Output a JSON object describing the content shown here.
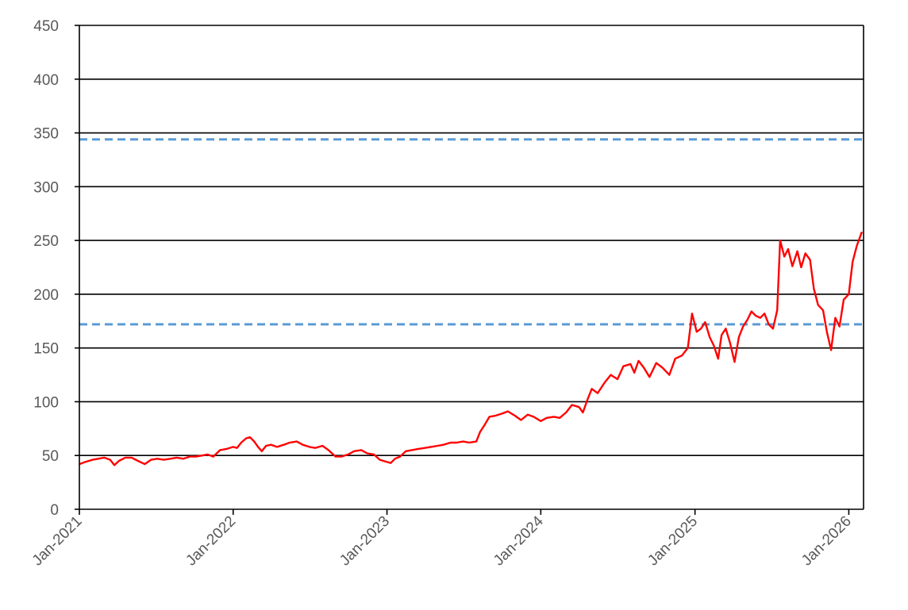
{
  "chart_data": {
    "type": "line",
    "title": "",
    "xlabel": "",
    "ylabel": "",
    "x_range": [
      "2021-01-01",
      "2026-02-05"
    ],
    "ylim": [
      0,
      450
    ],
    "y_ticks": [
      0,
      50,
      100,
      150,
      200,
      250,
      300,
      350,
      400,
      450
    ],
    "y_tick_labels": [
      "0",
      "50",
      "100",
      "150",
      "200",
      "250",
      "300",
      "350",
      "400",
      "450"
    ],
    "x_ticks": [
      "2021-01-01",
      "2022-01-01",
      "2023-01-01",
      "2024-01-01",
      "2025-01-01",
      "2026-01-01"
    ],
    "x_tick_labels": [
      "Jan-2021",
      "Jan-2022",
      "Jan-2023",
      "Jan-2024",
      "Jan-2025",
      "Jan-2026"
    ],
    "grid": "horizontal",
    "legend": "none",
    "reference_lines": [
      {
        "y": 344,
        "style": "dashed",
        "color": "#5B9BD5"
      },
      {
        "y": 172,
        "style": "dashed",
        "color": "#5B9BD5"
      }
    ],
    "series": [
      {
        "color": "#FF0000",
        "points": [
          [
            "2021-01-01",
            42
          ],
          [
            "2021-01-15",
            44
          ],
          [
            "2021-02-01",
            46
          ],
          [
            "2021-02-15",
            47
          ],
          [
            "2021-03-01",
            48
          ],
          [
            "2021-03-15",
            46
          ],
          [
            "2021-03-25",
            41
          ],
          [
            "2021-04-05",
            45
          ],
          [
            "2021-04-20",
            48
          ],
          [
            "2021-05-05",
            48
          ],
          [
            "2021-05-20",
            45
          ],
          [
            "2021-06-05",
            42
          ],
          [
            "2021-06-20",
            46
          ],
          [
            "2021-07-05",
            47
          ],
          [
            "2021-07-20",
            46
          ],
          [
            "2021-08-05",
            47
          ],
          [
            "2021-08-20",
            48
          ],
          [
            "2021-09-05",
            47
          ],
          [
            "2021-09-20",
            49
          ],
          [
            "2021-10-05",
            49
          ],
          [
            "2021-10-20",
            50
          ],
          [
            "2021-11-01",
            51
          ],
          [
            "2021-11-15",
            49
          ],
          [
            "2021-12-01",
            55
          ],
          [
            "2021-12-15",
            56
          ],
          [
            "2022-01-01",
            58
          ],
          [
            "2022-01-10",
            57
          ],
          [
            "2022-01-20",
            62
          ],
          [
            "2022-02-01",
            66
          ],
          [
            "2022-02-10",
            67
          ],
          [
            "2022-02-20",
            63
          ],
          [
            "2022-03-01",
            58
          ],
          [
            "2022-03-10",
            54
          ],
          [
            "2022-03-20",
            59
          ],
          [
            "2022-04-01",
            60
          ],
          [
            "2022-04-15",
            58
          ],
          [
            "2022-05-01",
            60
          ],
          [
            "2022-05-15",
            62
          ],
          [
            "2022-06-01",
            63
          ],
          [
            "2022-06-15",
            60
          ],
          [
            "2022-07-01",
            58
          ],
          [
            "2022-07-15",
            57
          ],
          [
            "2022-08-01",
            59
          ],
          [
            "2022-08-15",
            55
          ],
          [
            "2022-09-01",
            49
          ],
          [
            "2022-09-15",
            49
          ],
          [
            "2022-10-01",
            51
          ],
          [
            "2022-10-15",
            54
          ],
          [
            "2022-11-01",
            55
          ],
          [
            "2022-11-15",
            52
          ],
          [
            "2022-12-01",
            51
          ],
          [
            "2022-12-15",
            46
          ],
          [
            "2023-01-01",
            44
          ],
          [
            "2023-01-10",
            43
          ],
          [
            "2023-01-20",
            47
          ],
          [
            "2023-02-01",
            49
          ],
          [
            "2023-02-15",
            54
          ],
          [
            "2023-03-01",
            55
          ],
          [
            "2023-03-15",
            56
          ],
          [
            "2023-04-01",
            57
          ],
          [
            "2023-04-15",
            58
          ],
          [
            "2023-05-01",
            59
          ],
          [
            "2023-05-15",
            60
          ],
          [
            "2023-06-01",
            62
          ],
          [
            "2023-06-15",
            62
          ],
          [
            "2023-07-01",
            63
          ],
          [
            "2023-07-15",
            62
          ],
          [
            "2023-08-01",
            63
          ],
          [
            "2023-08-10",
            72
          ],
          [
            "2023-08-20",
            78
          ],
          [
            "2023-09-01",
            86
          ],
          [
            "2023-09-15",
            87
          ],
          [
            "2023-10-01",
            89
          ],
          [
            "2023-10-15",
            91
          ],
          [
            "2023-11-01",
            87
          ],
          [
            "2023-11-15",
            83
          ],
          [
            "2023-12-01",
            88
          ],
          [
            "2023-12-15",
            86
          ],
          [
            "2024-01-01",
            82
          ],
          [
            "2024-01-15",
            85
          ],
          [
            "2024-02-01",
            86
          ],
          [
            "2024-02-15",
            85
          ],
          [
            "2024-03-01",
            90
          ],
          [
            "2024-03-15",
            97
          ],
          [
            "2024-04-01",
            95
          ],
          [
            "2024-04-10",
            90
          ],
          [
            "2024-04-20",
            101
          ],
          [
            "2024-05-01",
            112
          ],
          [
            "2024-05-15",
            108
          ],
          [
            "2024-06-01",
            118
          ],
          [
            "2024-06-15",
            125
          ],
          [
            "2024-07-01",
            121
          ],
          [
            "2024-07-15",
            133
          ],
          [
            "2024-08-01",
            135
          ],
          [
            "2024-08-10",
            127
          ],
          [
            "2024-08-20",
            138
          ],
          [
            "2024-09-01",
            132
          ],
          [
            "2024-09-15",
            123
          ],
          [
            "2024-10-01",
            136
          ],
          [
            "2024-10-15",
            132
          ],
          [
            "2024-11-01",
            125
          ],
          [
            "2024-11-15",
            140
          ],
          [
            "2024-12-01",
            143
          ],
          [
            "2024-12-15",
            150
          ],
          [
            "2024-12-25",
            182
          ],
          [
            "2025-01-05",
            165
          ],
          [
            "2025-01-15",
            168
          ],
          [
            "2025-01-25",
            174
          ],
          [
            "2025-02-05",
            160
          ],
          [
            "2025-02-15",
            152
          ],
          [
            "2025-02-25",
            140
          ],
          [
            "2025-03-05",
            162
          ],
          [
            "2025-03-15",
            168
          ],
          [
            "2025-03-25",
            155
          ],
          [
            "2025-04-05",
            137
          ],
          [
            "2025-04-15",
            160
          ],
          [
            "2025-04-25",
            170
          ],
          [
            "2025-05-05",
            176
          ],
          [
            "2025-05-15",
            184
          ],
          [
            "2025-05-25",
            180
          ],
          [
            "2025-06-05",
            178
          ],
          [
            "2025-06-15",
            182
          ],
          [
            "2025-06-25",
            172
          ],
          [
            "2025-07-05",
            168
          ],
          [
            "2025-07-15",
            185
          ],
          [
            "2025-07-22",
            250
          ],
          [
            "2025-08-01",
            235
          ],
          [
            "2025-08-10",
            242
          ],
          [
            "2025-08-20",
            226
          ],
          [
            "2025-09-01",
            240
          ],
          [
            "2025-09-10",
            225
          ],
          [
            "2025-09-20",
            238
          ],
          [
            "2025-10-01",
            232
          ],
          [
            "2025-10-10",
            205
          ],
          [
            "2025-10-20",
            190
          ],
          [
            "2025-11-01",
            185
          ],
          [
            "2025-11-10",
            165
          ],
          [
            "2025-11-20",
            148
          ],
          [
            "2025-11-30",
            178
          ],
          [
            "2025-12-10",
            170
          ],
          [
            "2025-12-20",
            195
          ],
          [
            "2026-01-01",
            200
          ],
          [
            "2026-01-10",
            230
          ],
          [
            "2026-01-20",
            245
          ],
          [
            "2026-02-01",
            258
          ]
        ]
      }
    ]
  }
}
